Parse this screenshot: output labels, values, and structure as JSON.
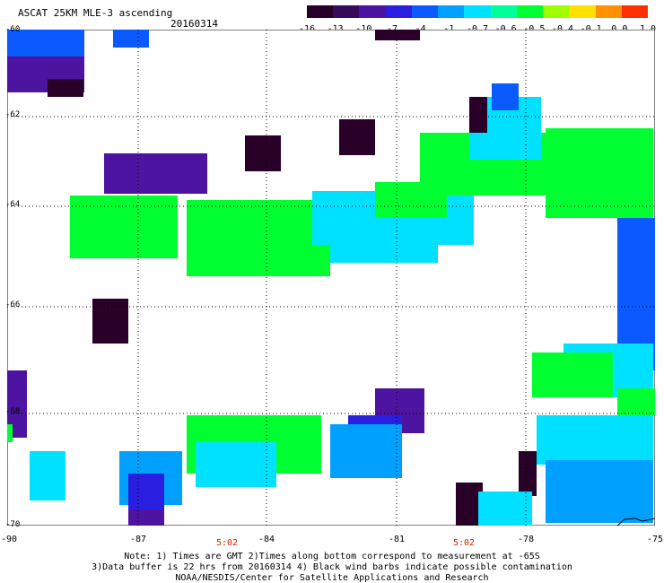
{
  "header": {
    "title": "ASCAT 25KM MLE-3 ascending",
    "date": "20160314"
  },
  "colorbar": {
    "colors": [
      "#280028",
      "#3a0a5a",
      "#4c14a0",
      "#2a1ee0",
      "#0a5aff",
      "#00a0ff",
      "#00e0ff",
      "#00ff9a",
      "#00ff30",
      "#a0ff00",
      "#ffe000",
      "#ff9000",
      "#ff3000"
    ],
    "labels": [
      "-16",
      "-13",
      "-10",
      "-7",
      "-4",
      "-1",
      "-0.7",
      "-0.6",
      "-0.5",
      "-0.4",
      "-0.1",
      "0.0",
      "1.0"
    ]
  },
  "axes": {
    "x_labels": [
      "-90",
      "-87",
      "-84",
      "-81",
      "-78",
      "-75"
    ],
    "y_labels": [
      "-60",
      "-62",
      "-64",
      "-66",
      "-68",
      "-70"
    ]
  },
  "time_labels": [
    "5:02",
    "5:02"
  ],
  "notes": [
    "Note: 1) Times are GMT 2)Times along bottom correspond to measurement at -65S",
    "3)Data buffer is 22 hrs from 20160314 4) Black wind barbs indicate possible contamination",
    "NOAA/NESDIS/Center for Satellite Applications and Research"
  ]
}
